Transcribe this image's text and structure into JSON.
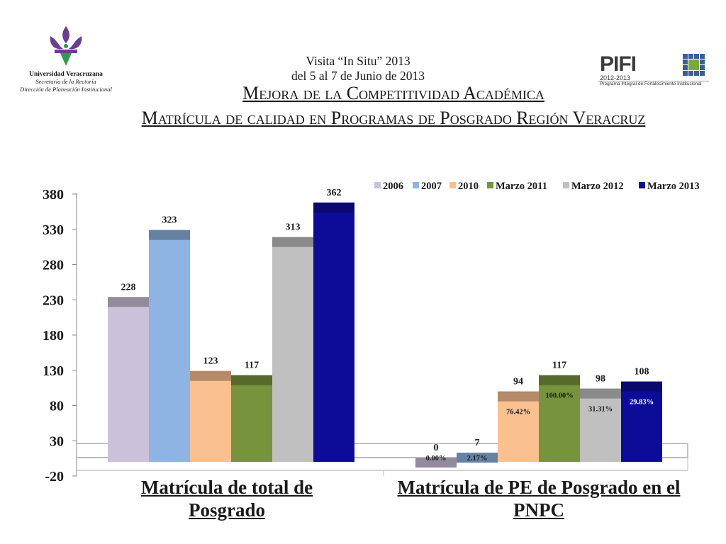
{
  "header": {
    "university": "Universidad Veracruzana",
    "sub1": "Secretaría de la Rectoría",
    "sub2": "Dirección de Planeación Institucional",
    "visit_line1": "Visita “In Situ”  2013",
    "visit_line2": "del 5 al 7 de Junio de 2013",
    "pifi_word": "PIFI",
    "pifi_years": "2012-2013",
    "pifi_text": "Programa Integral de Fortalecimiento Institucional"
  },
  "title": "Mejora de la Competitividad Académica",
  "subtitle": "Matrícula de calidad en Programas de Posgrado Región Veracruz",
  "colors": {
    "2006": "#ccc1da",
    "2007": "#8eb4e3",
    "2010": "#fac090",
    "Marzo 2011": "#77933c",
    "Marzo 2012": "#c0c0c0",
    "Marzo 2013": "#0c0c99"
  },
  "chart_data": {
    "type": "bar",
    "categories": [
      "Matrícula de total de Posgrado",
      "Matrícula de PE de Posgrado en el PNPC"
    ],
    "series": [
      {
        "name": "2006",
        "values": [
          228,
          0
        ],
        "percent": [
          null,
          "0.00%"
        ]
      },
      {
        "name": "2007",
        "values": [
          323,
          7
        ],
        "percent": [
          null,
          "2.17%"
        ]
      },
      {
        "name": "2010",
        "values": [
          123,
          94
        ],
        "percent": [
          null,
          "76.42%"
        ]
      },
      {
        "name": "Marzo 2011",
        "values": [
          117,
          117
        ],
        "percent": [
          null,
          "100.00%"
        ]
      },
      {
        "name": "Marzo 2012",
        "values": [
          313,
          98
        ],
        "percent": [
          null,
          "31.31%"
        ]
      },
      {
        "name": "Marzo 2013",
        "values": [
          362,
          108
        ],
        "percent": [
          null,
          "29.83%"
        ]
      }
    ],
    "yticks": [
      -20,
      30,
      80,
      130,
      180,
      230,
      280,
      330,
      380
    ],
    "ylim": [
      -20,
      380
    ],
    "legend": "top-right",
    "grid": false
  }
}
